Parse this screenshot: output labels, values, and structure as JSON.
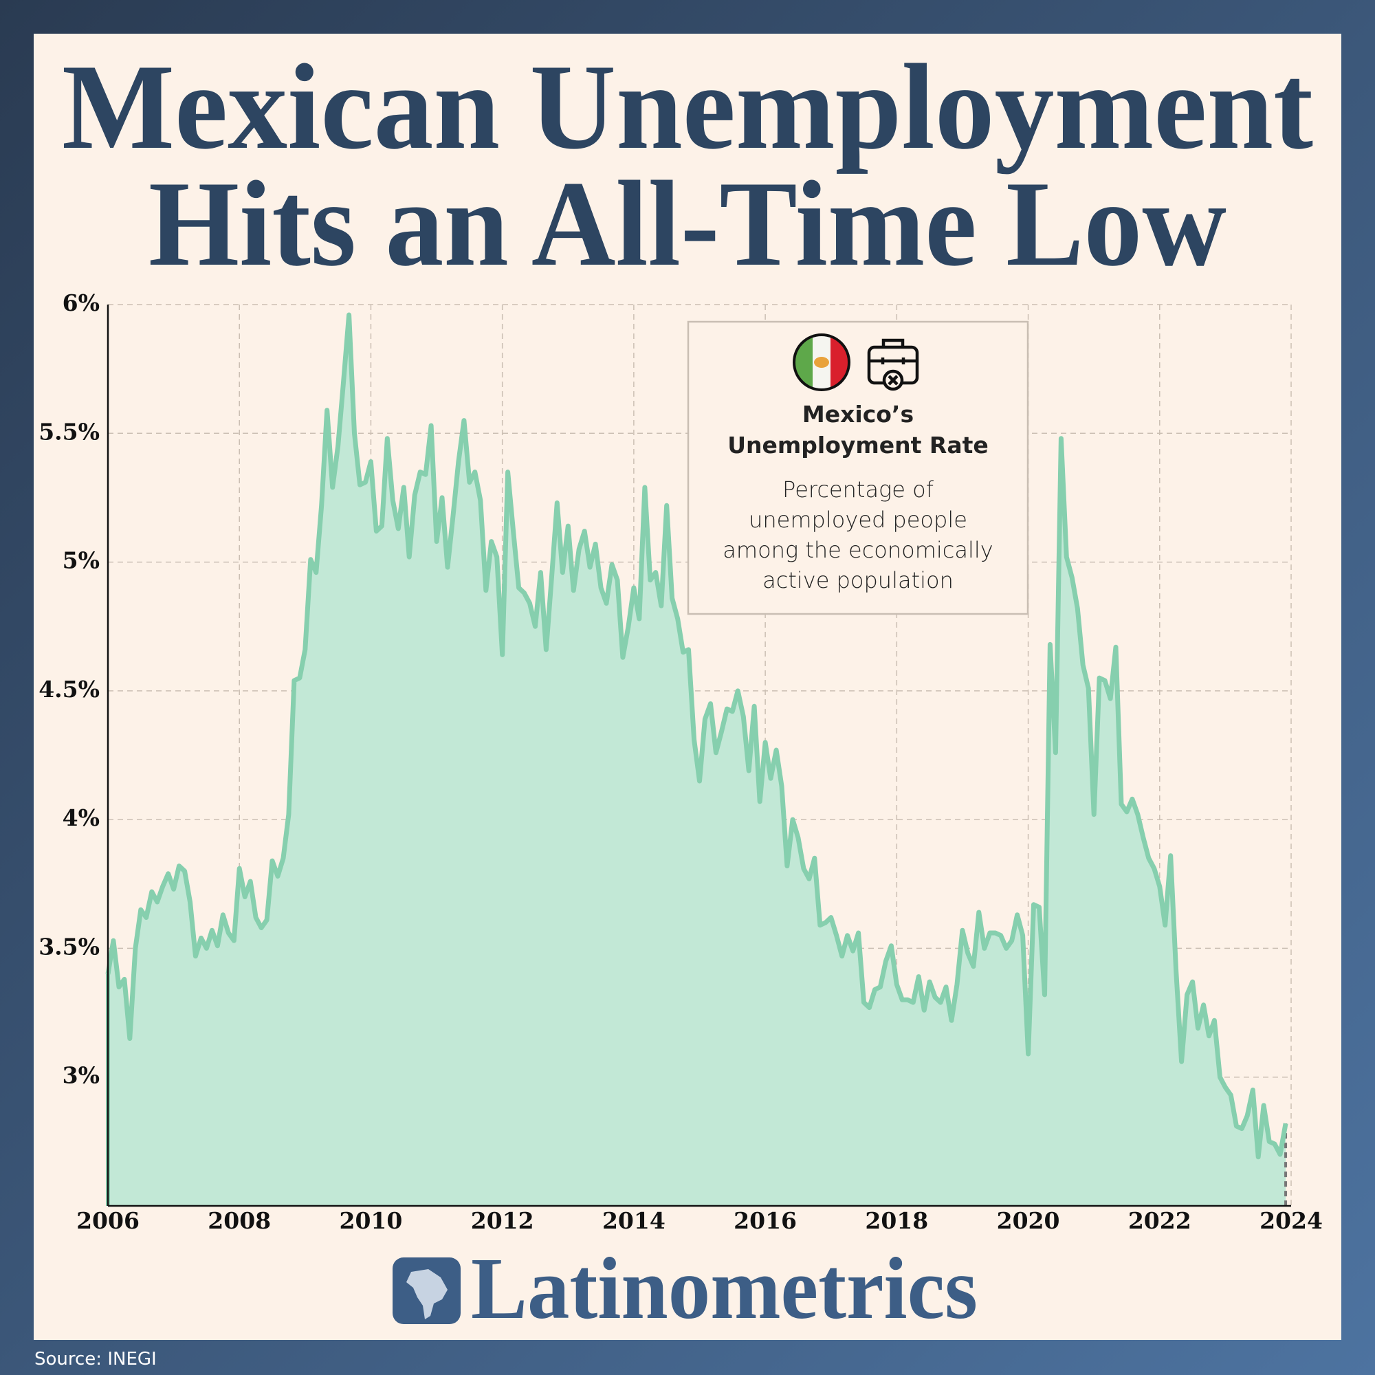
{
  "chart_data": {
    "type": "area",
    "title": [
      "Mexican Unemployment",
      "Hits an All-Time Low"
    ],
    "annotation": {
      "title": [
        "Mexico’s",
        "Unemployment Rate"
      ],
      "text": [
        "Percentage of",
        "unemployed people",
        "among the economically",
        "active population"
      ]
    },
    "color": "#86cfae",
    "fill_color": "#c2e8d6",
    "grid": true,
    "xlim": [
      2006,
      2024
    ],
    "xticks": [
      2006,
      2008,
      2010,
      2012,
      2014,
      2016,
      2018,
      2020,
      2022,
      2024
    ],
    "ylim": [
      2.5,
      6
    ],
    "yticks": [
      {
        "value": 3,
        "label": "3%"
      },
      {
        "value": 3.5,
        "label": "3.5%"
      },
      {
        "value": 4,
        "label": "4%"
      },
      {
        "value": 4.5,
        "label": "4.5%"
      },
      {
        "value": 5,
        "label": "5%"
      },
      {
        "value": 5.5,
        "label": "5.5%"
      },
      {
        "value": 6,
        "label": "6%"
      }
    ],
    "x": [
      2006,
      2006.083,
      2006.167,
      2006.25,
      2006.333,
      2006.417,
      2006.5,
      2006.583,
      2006.667,
      2006.75,
      2006.833,
      2006.917,
      2007,
      2007.083,
      2007.167,
      2007.25,
      2007.333,
      2007.417,
      2007.5,
      2007.583,
      2007.667,
      2007.75,
      2007.833,
      2007.917,
      2008,
      2008.083,
      2008.167,
      2008.25,
      2008.333,
      2008.417,
      2008.5,
      2008.583,
      2008.667,
      2008.75,
      2008.833,
      2008.917,
      2009,
      2009.083,
      2009.167,
      2009.25,
      2009.333,
      2009.417,
      2009.5,
      2009.583,
      2009.667,
      2009.75,
      2009.833,
      2009.917,
      2010,
      2010.083,
      2010.167,
      2010.25,
      2010.333,
      2010.417,
      2010.5,
      2010.583,
      2010.667,
      2010.75,
      2010.833,
      2010.917,
      2011,
      2011.083,
      2011.167,
      2011.25,
      2011.333,
      2011.417,
      2011.5,
      2011.583,
      2011.667,
      2011.75,
      2011.833,
      2011.917,
      2012,
      2012.083,
      2012.167,
      2012.25,
      2012.333,
      2012.417,
      2012.5,
      2012.583,
      2012.667,
      2012.75,
      2012.833,
      2012.917,
      2013,
      2013.083,
      2013.167,
      2013.25,
      2013.333,
      2013.417,
      2013.5,
      2013.583,
      2013.667,
      2013.75,
      2013.833,
      2013.917,
      2014,
      2014.083,
      2014.167,
      2014.25,
      2014.333,
      2014.417,
      2014.5,
      2014.583,
      2014.667,
      2014.75,
      2014.833,
      2014.917,
      2015,
      2015.083,
      2015.167,
      2015.25,
      2015.333,
      2015.417,
      2015.5,
      2015.583,
      2015.667,
      2015.75,
      2015.833,
      2015.917,
      2016,
      2016.083,
      2016.167,
      2016.25,
      2016.333,
      2016.417,
      2016.5,
      2016.583,
      2016.667,
      2016.75,
      2016.833,
      2016.917,
      2017,
      2017.083,
      2017.167,
      2017.25,
      2017.333,
      2017.417,
      2017.5,
      2017.583,
      2017.667,
      2017.75,
      2017.833,
      2017.917,
      2018,
      2018.083,
      2018.167,
      2018.25,
      2018.333,
      2018.417,
      2018.5,
      2018.583,
      2018.667,
      2018.75,
      2018.833,
      2018.917,
      2019,
      2019.083,
      2019.167,
      2019.25,
      2019.333,
      2019.417,
      2019.5,
      2019.583,
      2019.667,
      2019.75,
      2019.833,
      2019.917,
      2020,
      2020.083,
      2020.167,
      2020.25,
      2020.333,
      2020.417,
      2020.5,
      2020.583,
      2020.667,
      2020.75,
      2020.833,
      2020.917,
      2021,
      2021.083,
      2021.167,
      2021.25,
      2021.333,
      2021.417,
      2021.5,
      2021.583,
      2021.667,
      2021.75,
      2021.833,
      2021.917,
      2022,
      2022.083,
      2022.167,
      2022.25,
      2022.333,
      2022.417,
      2022.5,
      2022.583,
      2022.667,
      2022.75,
      2022.833,
      2022.917,
      2023,
      2023.083,
      2023.167,
      2023.25,
      2023.333,
      2023.417,
      2023.5,
      2023.583,
      2023.667,
      2023.75,
      2023.833,
      2023.917
    ],
    "values": [
      3.4,
      3.53,
      3.35,
      3.38,
      3.15,
      3.5,
      3.65,
      3.62,
      3.72,
      3.68,
      3.74,
      3.79,
      3.73,
      3.82,
      3.8,
      3.68,
      3.47,
      3.54,
      3.5,
      3.57,
      3.51,
      3.63,
      3.56,
      3.53,
      3.81,
      3.7,
      3.76,
      3.62,
      3.58,
      3.61,
      3.84,
      3.78,
      3.85,
      4.02,
      4.54,
      4.55,
      4.66,
      5.01,
      4.96,
      5.22,
      5.59,
      5.29,
      5.45,
      5.7,
      5.96,
      5.5,
      5.3,
      5.31,
      5.39,
      5.12,
      5.14,
      5.48,
      5.24,
      5.13,
      5.29,
      5.02,
      5.26,
      5.35,
      5.34,
      5.53,
      5.08,
      5.25,
      4.98,
      5.18,
      5.39,
      5.55,
      5.31,
      5.35,
      5.24,
      4.89,
      5.08,
      5.02,
      4.64,
      5.35,
      5.12,
      4.9,
      4.88,
      4.84,
      4.75,
      4.96,
      4.66,
      4.94,
      5.23,
      4.96,
      5.14,
      4.89,
      5.05,
      5.12,
      4.98,
      5.07,
      4.9,
      4.84,
      4.99,
      4.93,
      4.63,
      4.75,
      4.9,
      4.78,
      5.29,
      4.93,
      4.96,
      4.83,
      5.22,
      4.86,
      4.78,
      4.65,
      4.66,
      4.31,
      4.15,
      4.39,
      4.45,
      4.26,
      4.34,
      4.43,
      4.42,
      4.5,
      4.4,
      4.19,
      4.44,
      4.07,
      4.3,
      4.16,
      4.27,
      4.13,
      3.82,
      4.0,
      3.93,
      3.81,
      3.77,
      3.85,
      3.59,
      3.6,
      3.62,
      3.55,
      3.47,
      3.55,
      3.49,
      3.56,
      3.29,
      3.27,
      3.34,
      3.35,
      3.45,
      3.51,
      3.36,
      3.3,
      3.3,
      3.29,
      3.39,
      3.26,
      3.37,
      3.31,
      3.29,
      3.35,
      3.22,
      3.36,
      3.57,
      3.48,
      3.43,
      3.64,
      3.5,
      3.56,
      3.56,
      3.55,
      3.5,
      3.53,
      3.63,
      3.55,
      3.09,
      3.67,
      3.66,
      3.32,
      4.68,
      4.26,
      5.48,
      5.02,
      4.94,
      4.82,
      4.6,
      4.51,
      4.02,
      4.55,
      4.54,
      4.47,
      4.67,
      4.06,
      4.03,
      4.08,
      4.02,
      3.93,
      3.85,
      3.81,
      3.74,
      3.59,
      3.86,
      3.41,
      3.06,
      3.32,
      3.37,
      3.19,
      3.28,
      3.16,
      3.22,
      3.0,
      2.96,
      2.93,
      2.81,
      2.8,
      2.85,
      2.95,
      2.69,
      2.89,
      2.75,
      2.74,
      2.7,
      2.82
    ]
  },
  "brand": "Latinometrics",
  "source": "Source: INEGI"
}
